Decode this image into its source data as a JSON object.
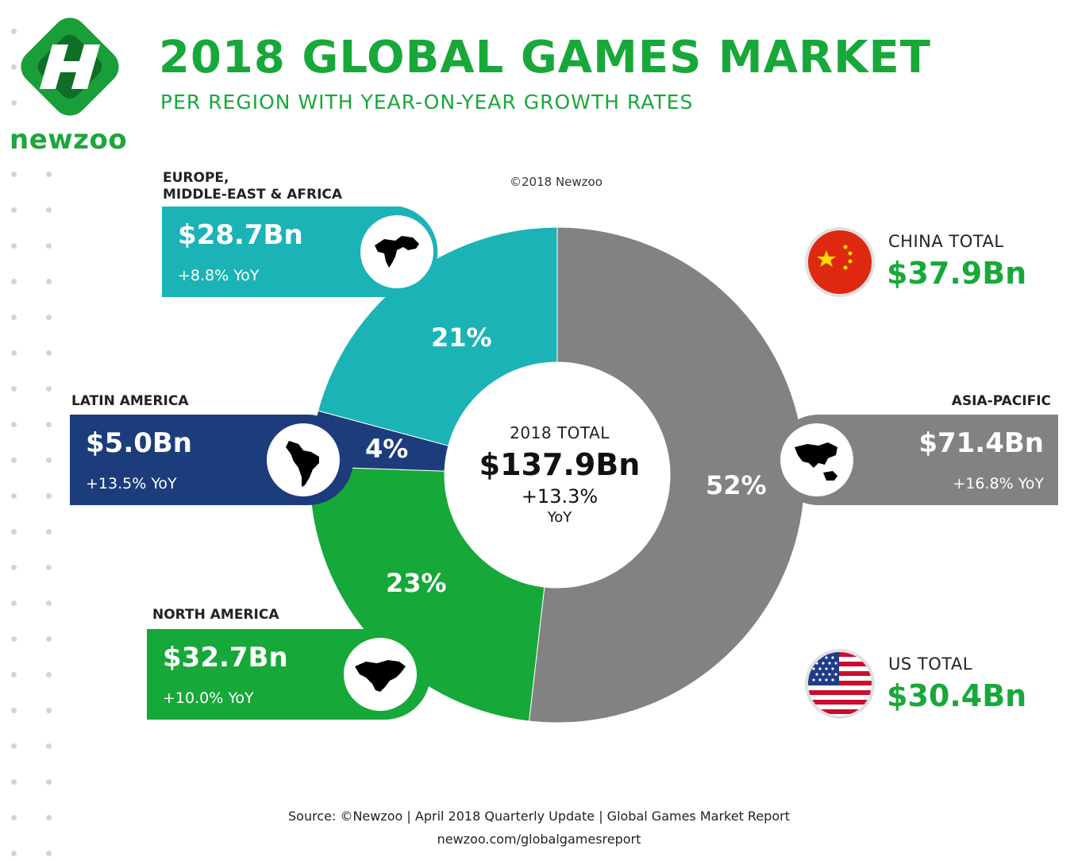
{
  "header": {
    "logo_text": "newzoo",
    "title": "2018 GLOBAL GAMES MARKET",
    "subtitle": "PER REGION WITH YEAR-ON-YEAR GROWTH RATES",
    "copyright": "©2018 Newzoo"
  },
  "colors": {
    "brand_green": "#18a83a",
    "emea": "#1bb3b6",
    "latam": "#1c3c7c",
    "north_america": "#16a838",
    "asia_pacific": "#828282"
  },
  "regions": {
    "emea": {
      "label": "EUROPE,\nMIDDLE-EAST & AFRICA",
      "value": "$28.7Bn",
      "yoy": "+8.8% YoY",
      "map_icon": "europe-africa-map-icon"
    },
    "latam": {
      "label": "LATIN AMERICA",
      "value": "$5.0Bn",
      "yoy": "+13.5% YoY",
      "map_icon": "latin-america-map-icon"
    },
    "north_america": {
      "label": "NORTH AMERICA",
      "value": "$32.7Bn",
      "yoy": "+10.0% YoY",
      "map_icon": "north-america-map-icon"
    },
    "asia_pacific": {
      "label": "ASIA-PACIFIC",
      "value": "$71.4Bn",
      "yoy": "+16.8% YoY",
      "map_icon": "asia-pacific-map-icon"
    }
  },
  "center": {
    "label": "2018 TOTAL",
    "value": "$137.9Bn",
    "growth": "+13.3%",
    "yoy": "YoY"
  },
  "countries": {
    "china": {
      "name": "CHINA TOTAL",
      "value": "$37.9Bn",
      "flag_icon": "china-flag-icon"
    },
    "us": {
      "name": "US TOTAL",
      "value": "$30.4Bn",
      "flag_icon": "us-flag-icon"
    }
  },
  "chart_data": {
    "type": "pie",
    "categories": [
      "Asia-Pacific",
      "North America",
      "Latin America",
      "Europe, Middle-East & Africa"
    ],
    "values": [
      71.4,
      32.7,
      5.0,
      28.7
    ],
    "percent_labels": [
      "52%",
      "23%",
      "4%",
      "21%"
    ],
    "unit": "$Bn",
    "total": 137.9,
    "colors": [
      "#828282",
      "#16a838",
      "#1c3c7c",
      "#1bb3b6"
    ]
  },
  "footer": {
    "source": "Source: ©Newzoo | April 2018 Quarterly Update | Global Games Market Report",
    "url": "newzoo.com/globalgamesreport"
  }
}
